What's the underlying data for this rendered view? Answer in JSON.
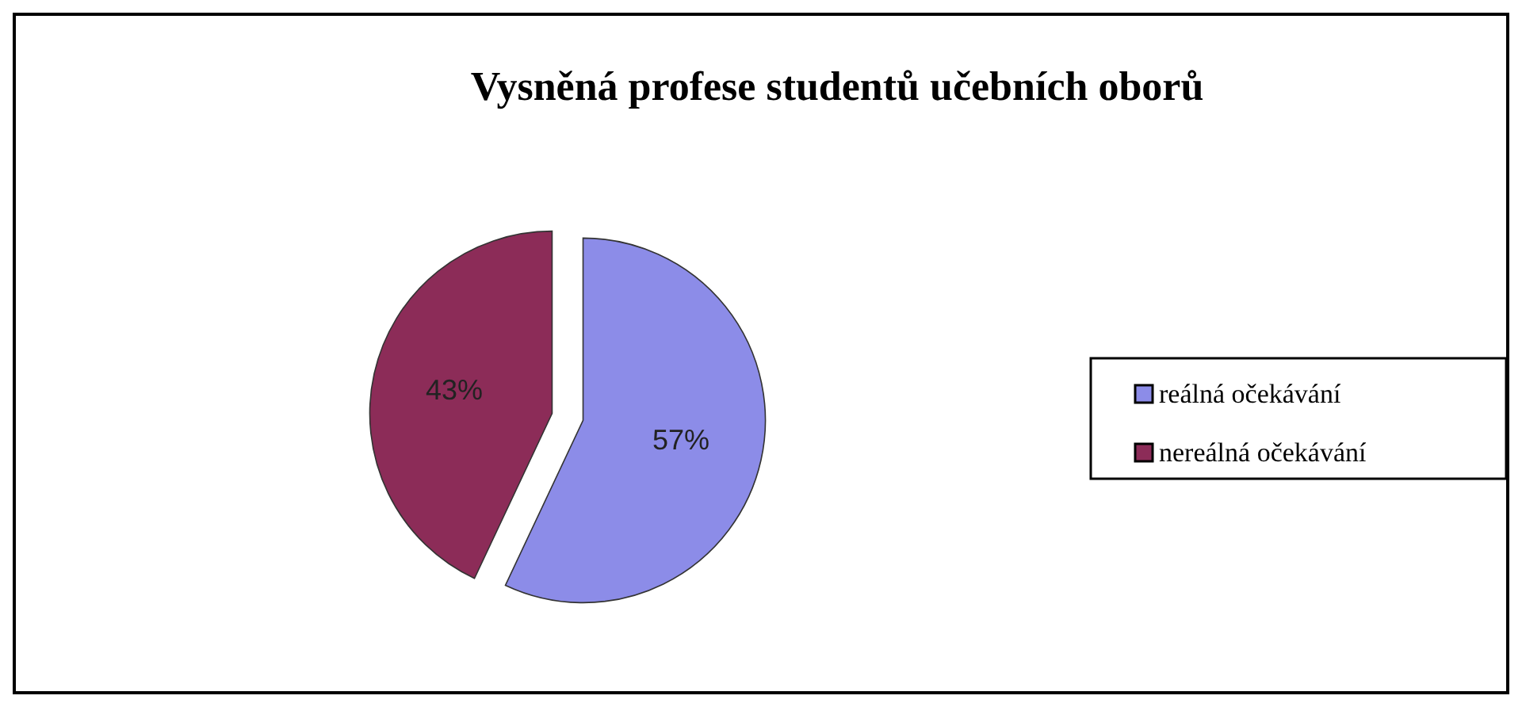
{
  "chart_data": {
    "type": "pie",
    "title": "Vysněná profese studentů učebních oborů",
    "categories": [
      "reálná očekávání",
      "nereálná očekávání"
    ],
    "values": [
      57,
      43
    ],
    "colors": [
      "#8c8ce8",
      "#8c2c58"
    ],
    "value_labels": [
      "57%",
      "43%"
    ],
    "legend": "right"
  }
}
